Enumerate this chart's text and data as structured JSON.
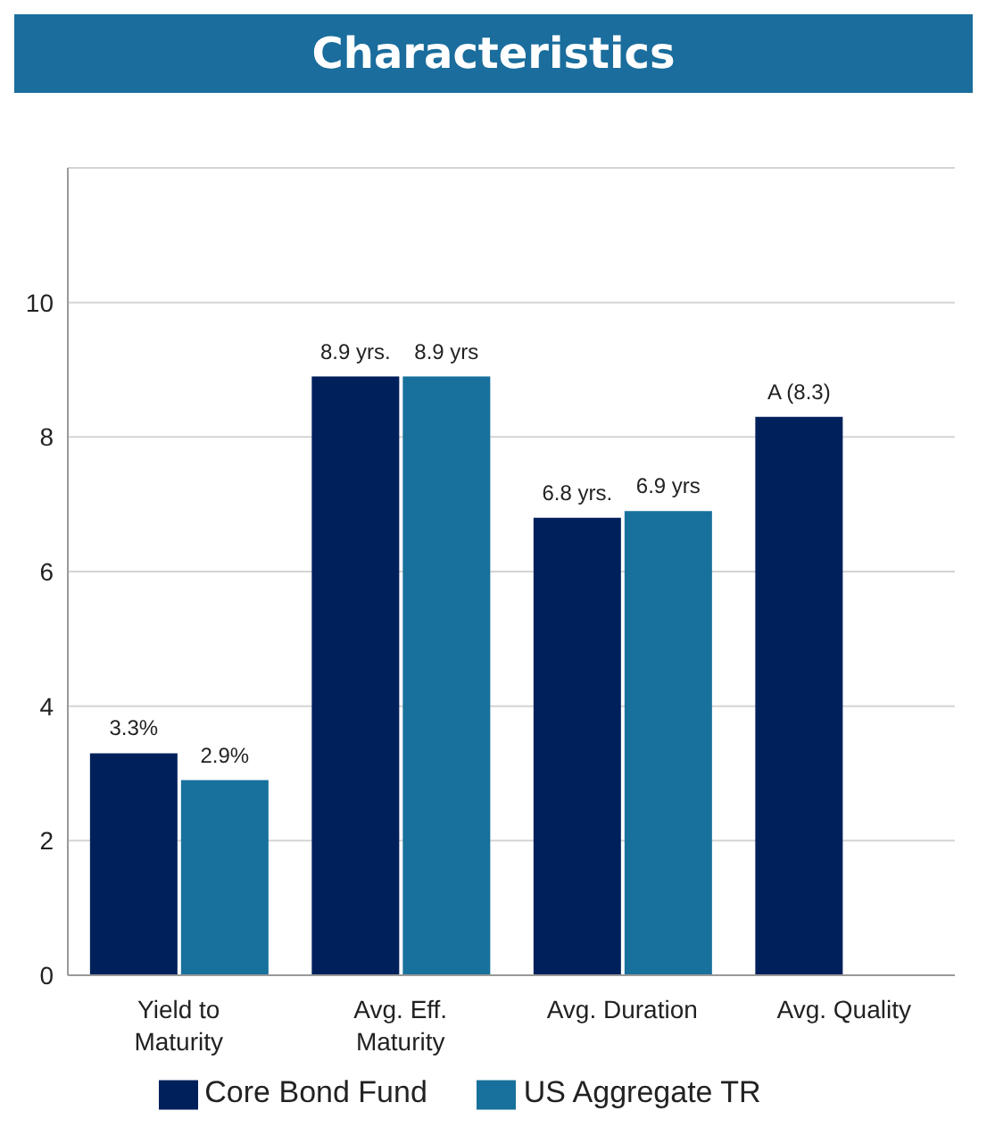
{
  "chart_data": {
    "type": "bar",
    "title": "Characteristics",
    "categories": [
      "Yield to\nMaturity",
      "Avg. Eff.\nMaturity",
      "Avg. Duration",
      "Avg. Quality"
    ],
    "series": [
      {
        "name": "Core Bond Fund",
        "color": "#00205c",
        "values": [
          3.3,
          8.9,
          6.8,
          8.3
        ],
        "value_labels": [
          "3.3%",
          "8.9 yrs.",
          "6.8 yrs.",
          "A (8.3)"
        ]
      },
      {
        "name": "US Aggregate TR",
        "color": "#18709c",
        "values": [
          2.9,
          8.9,
          6.9,
          null
        ],
        "value_labels": [
          "2.9%",
          "8.9 yrs",
          "6.9 yrs",
          null
        ]
      }
    ],
    "ylim": [
      0,
      12
    ],
    "yticks": [
      0,
      2,
      4,
      6,
      8,
      10
    ],
    "grid": "y",
    "legend": "bottom"
  }
}
